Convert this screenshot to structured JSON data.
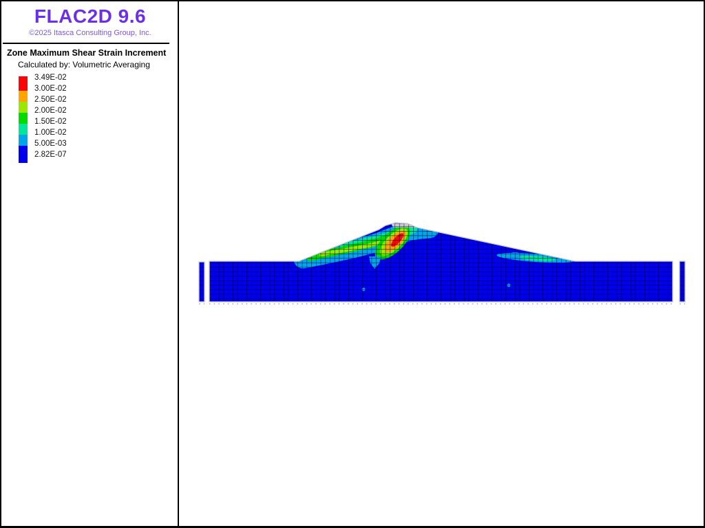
{
  "app": {
    "title": "FLAC2D 9.6",
    "copyright": "©2025 Itasca Consulting Group, Inc.",
    "brand_color": "#6B2FE8"
  },
  "legend": {
    "heading": "Zone Maximum Shear Strain Increment",
    "subheading": "Calculated by: Volumetric Averaging",
    "entries": [
      "3.49E-02",
      "3.00E-02",
      "2.50E-02",
      "2.00E-02",
      "1.50E-02",
      "1.00E-02",
      "5.00E-03",
      "2.82E-07"
    ],
    "ramp_colors": [
      "#F90606",
      "#FFA400",
      "#9CE700",
      "#00DC00",
      "#00E69A",
      "#00A6E8",
      "#0000EE"
    ]
  },
  "plot": {
    "type": "contour-mesh",
    "quantity": "Zone Maximum Shear Strain Increment",
    "max_value_label": "3.49E-02",
    "min_value_label": "2.82E-07",
    "palette": {
      "red": "#F90606",
      "orange": "#FFA400",
      "chartreuse": "#9CE700",
      "green": "#00DC00",
      "spring_green": "#00E69A",
      "sky_blue": "#00A6E8",
      "blue": "#0000EE",
      "mesh_line": "#000042",
      "outline_gray": "#C6C6C6",
      "crest_cap_gray": "#C9C9C9",
      "tick_gray": "#AAAAAA"
    }
  }
}
